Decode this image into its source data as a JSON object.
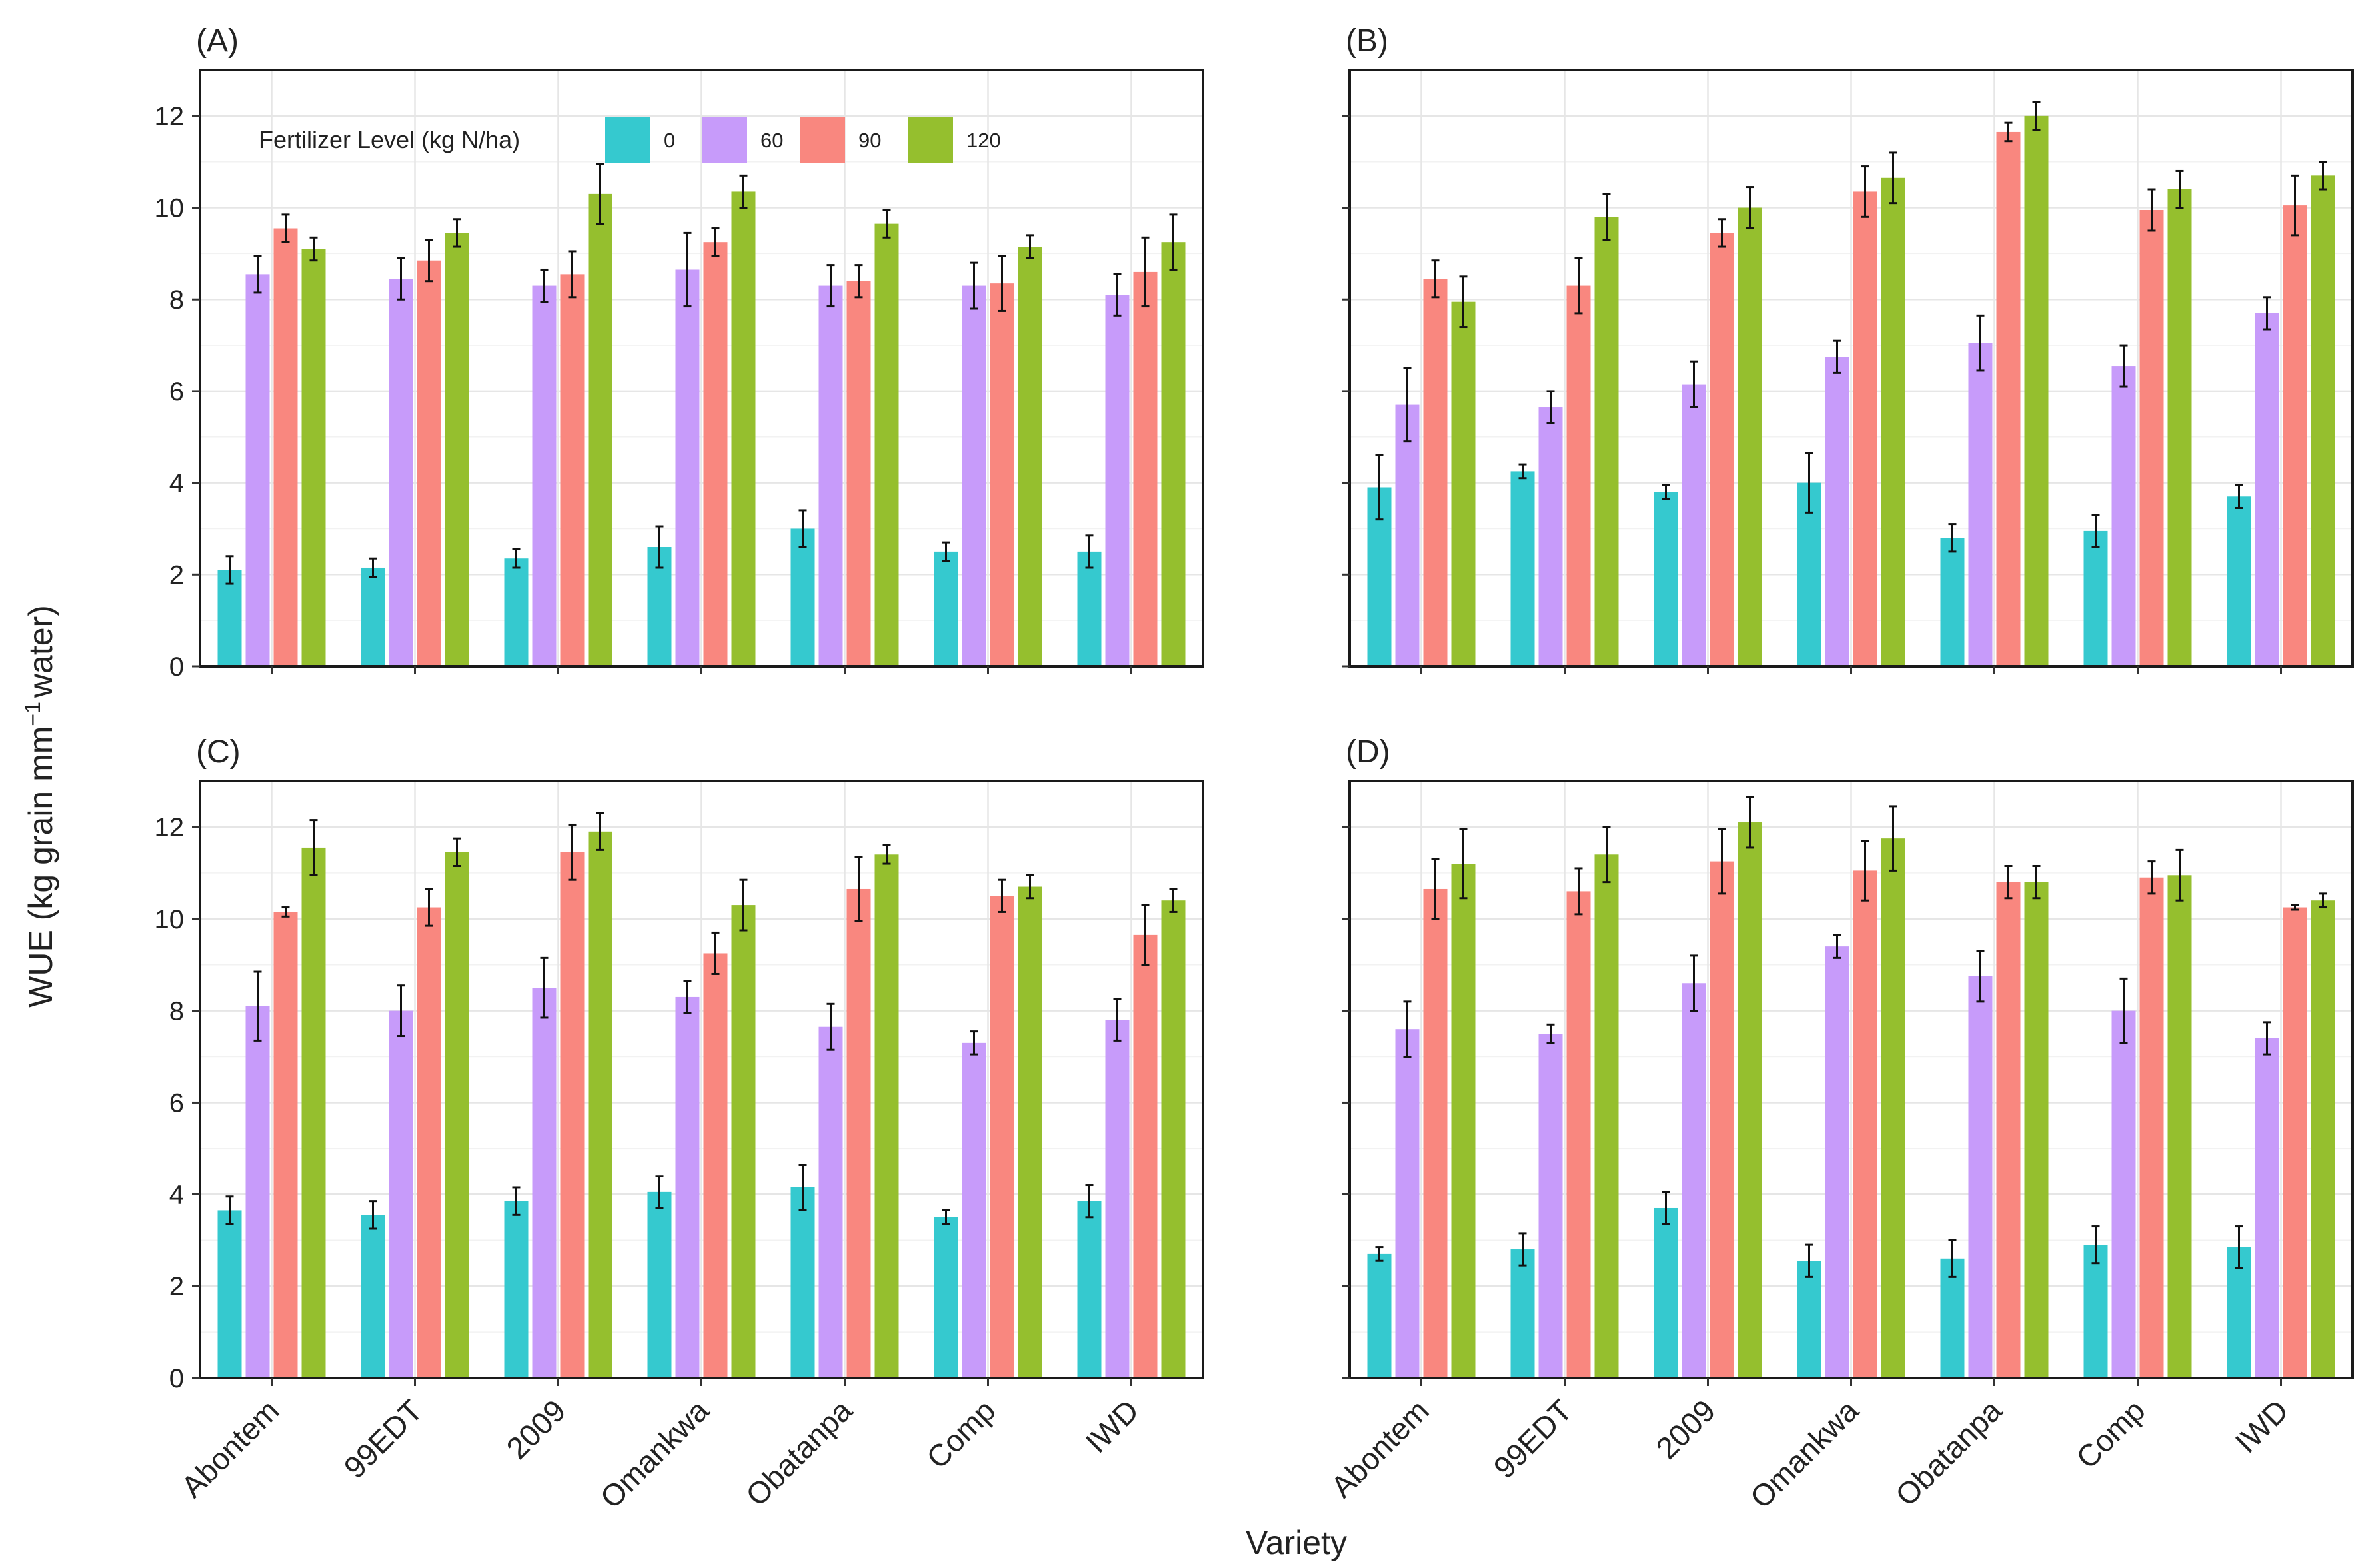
{
  "figure": {
    "ylabel_main": "WUE (kg grain mm",
    "ylabel_sup": "−1",
    "ylabel_tail": "water)",
    "xlabel": "Variety"
  },
  "legend": {
    "title": "Fertilizer Level (kg N/ha)"
  },
  "chart_data": [
    {
      "type": "bar",
      "panel": "(A)",
      "categories": [
        "Abontem",
        "99EDT",
        "2009",
        "Omankwa",
        "Obatanpa",
        "Comp",
        "IWD"
      ],
      "ylim": [
        0,
        13
      ],
      "yticks": [
        0,
        2,
        4,
        6,
        8,
        10,
        12
      ],
      "grid": true,
      "legend_position": "top-left",
      "series": [
        {
          "name": "0",
          "color": "#35C9CF",
          "values": [
            2.1,
            2.15,
            2.35,
            2.6,
            3.0,
            2.5,
            2.5
          ],
          "errors": [
            0.3,
            0.2,
            0.2,
            0.45,
            0.4,
            0.2,
            0.35
          ]
        },
        {
          "name": "60",
          "color": "#C79BFA",
          "values": [
            8.55,
            8.45,
            8.3,
            8.65,
            8.3,
            8.3,
            8.1
          ],
          "errors": [
            0.4,
            0.45,
            0.35,
            0.8,
            0.45,
            0.5,
            0.45
          ]
        },
        {
          "name": "90",
          "color": "#F9877F",
          "values": [
            9.55,
            8.85,
            8.55,
            9.25,
            8.4,
            8.35,
            8.6
          ],
          "errors": [
            0.3,
            0.45,
            0.5,
            0.3,
            0.35,
            0.6,
            0.75
          ]
        },
        {
          "name": "120",
          "color": "#95BF2E",
          "values": [
            9.1,
            9.45,
            10.3,
            10.35,
            9.65,
            9.15,
            9.25
          ],
          "errors": [
            0.25,
            0.3,
            0.65,
            0.35,
            0.3,
            0.25,
            0.6
          ]
        }
      ]
    },
    {
      "type": "bar",
      "panel": "(B)",
      "categories": [
        "Abontem",
        "99EDT",
        "2009",
        "Omankwa",
        "Obatanpa",
        "Comp",
        "IWD"
      ],
      "ylim": [
        0,
        13
      ],
      "yticks": [
        0,
        2,
        4,
        6,
        8,
        10,
        12
      ],
      "grid": true,
      "series": [
        {
          "name": "0",
          "color": "#35C9CF",
          "values": [
            3.9,
            4.25,
            3.8,
            4.0,
            2.8,
            2.95,
            3.7
          ],
          "errors": [
            0.7,
            0.15,
            0.15,
            0.65,
            0.3,
            0.35,
            0.25
          ]
        },
        {
          "name": "60",
          "color": "#C79BFA",
          "values": [
            5.7,
            5.65,
            6.15,
            6.75,
            7.05,
            6.55,
            7.7
          ],
          "errors": [
            0.8,
            0.35,
            0.5,
            0.35,
            0.6,
            0.45,
            0.35
          ]
        },
        {
          "name": "90",
          "color": "#F9877F",
          "values": [
            8.45,
            8.3,
            9.45,
            10.35,
            11.65,
            9.95,
            10.05
          ],
          "errors": [
            0.4,
            0.6,
            0.3,
            0.55,
            0.2,
            0.45,
            0.65
          ]
        },
        {
          "name": "120",
          "color": "#95BF2E",
          "values": [
            7.95,
            9.8,
            10.0,
            10.65,
            12.0,
            10.4,
            10.7
          ],
          "errors": [
            0.55,
            0.5,
            0.45,
            0.55,
            0.3,
            0.4,
            0.3
          ]
        }
      ]
    },
    {
      "type": "bar",
      "panel": "(C)",
      "categories": [
        "Abontem",
        "99EDT",
        "2009",
        "Omankwa",
        "Obatanpa",
        "Comp",
        "IWD"
      ],
      "ylim": [
        0,
        13
      ],
      "yticks": [
        0,
        2,
        4,
        6,
        8,
        10,
        12
      ],
      "grid": true,
      "series": [
        {
          "name": "0",
          "color": "#35C9CF",
          "values": [
            3.65,
            3.55,
            3.85,
            4.05,
            4.15,
            3.5,
            3.85
          ],
          "errors": [
            0.3,
            0.3,
            0.3,
            0.35,
            0.5,
            0.15,
            0.35
          ]
        },
        {
          "name": "60",
          "color": "#C79BFA",
          "values": [
            8.1,
            8.0,
            8.5,
            8.3,
            7.65,
            7.3,
            7.8
          ],
          "errors": [
            0.75,
            0.55,
            0.65,
            0.35,
            0.5,
            0.25,
            0.45
          ]
        },
        {
          "name": "90",
          "color": "#F9877F",
          "values": [
            10.15,
            10.25,
            11.45,
            9.25,
            10.65,
            10.5,
            9.65
          ],
          "errors": [
            0.1,
            0.4,
            0.6,
            0.45,
            0.7,
            0.35,
            0.65
          ]
        },
        {
          "name": "120",
          "color": "#95BF2E",
          "values": [
            11.55,
            11.45,
            11.9,
            10.3,
            11.4,
            10.7,
            10.4
          ],
          "errors": [
            0.6,
            0.3,
            0.4,
            0.55,
            0.2,
            0.25,
            0.25
          ]
        }
      ]
    },
    {
      "type": "bar",
      "panel": "(D)",
      "categories": [
        "Abontem",
        "99EDT",
        "2009",
        "Omankwa",
        "Obatanpa",
        "Comp",
        "IWD"
      ],
      "ylim": [
        0,
        13
      ],
      "yticks": [
        0,
        2,
        4,
        6,
        8,
        10,
        12
      ],
      "grid": true,
      "series": [
        {
          "name": "0",
          "color": "#35C9CF",
          "values": [
            2.7,
            2.8,
            3.7,
            2.55,
            2.6,
            2.9,
            2.85
          ],
          "errors": [
            0.15,
            0.35,
            0.35,
            0.35,
            0.4,
            0.4,
            0.45
          ]
        },
        {
          "name": "60",
          "color": "#C79BFA",
          "values": [
            7.6,
            7.5,
            8.6,
            9.4,
            8.75,
            8.0,
            7.4
          ],
          "errors": [
            0.6,
            0.2,
            0.6,
            0.25,
            0.55,
            0.7,
            0.35
          ]
        },
        {
          "name": "90",
          "color": "#F9877F",
          "values": [
            10.65,
            10.6,
            11.25,
            11.05,
            10.8,
            10.9,
            10.25
          ],
          "errors": [
            0.65,
            0.5,
            0.7,
            0.65,
            0.35,
            0.35,
            0.05
          ]
        },
        {
          "name": "120",
          "color": "#95BF2E",
          "values": [
            11.2,
            11.4,
            12.1,
            11.75,
            10.8,
            10.95,
            10.4
          ],
          "errors": [
            0.75,
            0.6,
            0.55,
            0.7,
            0.35,
            0.55,
            0.15
          ]
        }
      ]
    }
  ]
}
